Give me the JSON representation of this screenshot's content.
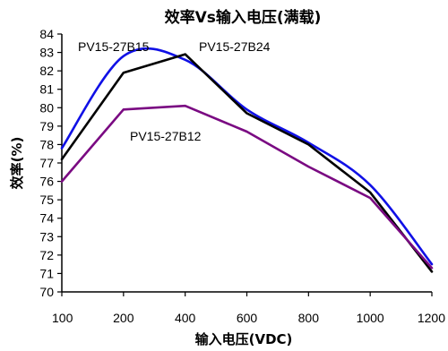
{
  "chart_data": {
    "type": "line",
    "title": "效率Vs输入电压(满载)",
    "xlabel": "输入电压(VDC)",
    "ylabel": "效率(%)",
    "categories": [
      "100",
      "200",
      "400",
      "600",
      "800",
      "1000",
      "1200"
    ],
    "ylim": [
      70,
      84
    ],
    "yticks": [
      "70",
      "71",
      "72",
      "73",
      "74",
      "75",
      "76",
      "77",
      "78",
      "79",
      "80",
      "81",
      "82",
      "83",
      "84"
    ],
    "grid": false,
    "series": [
      {
        "name": "PV15-27B15",
        "color": "#1010e6",
        "smooth": true,
        "values": [
          77.8,
          82.8,
          82.6,
          79.9,
          78.1,
          75.8,
          71.5
        ]
      },
      {
        "name": "PV15-27B24",
        "color": "#000000",
        "smooth": false,
        "values": [
          77.2,
          81.9,
          82.9,
          79.7,
          78.0,
          75.4,
          71.1
        ]
      },
      {
        "name": "PV15-27B12",
        "color": "#7a0a82",
        "smooth": false,
        "values": [
          76.0,
          79.9,
          80.1,
          78.7,
          76.8,
          75.1,
          71.3
        ]
      }
    ]
  }
}
